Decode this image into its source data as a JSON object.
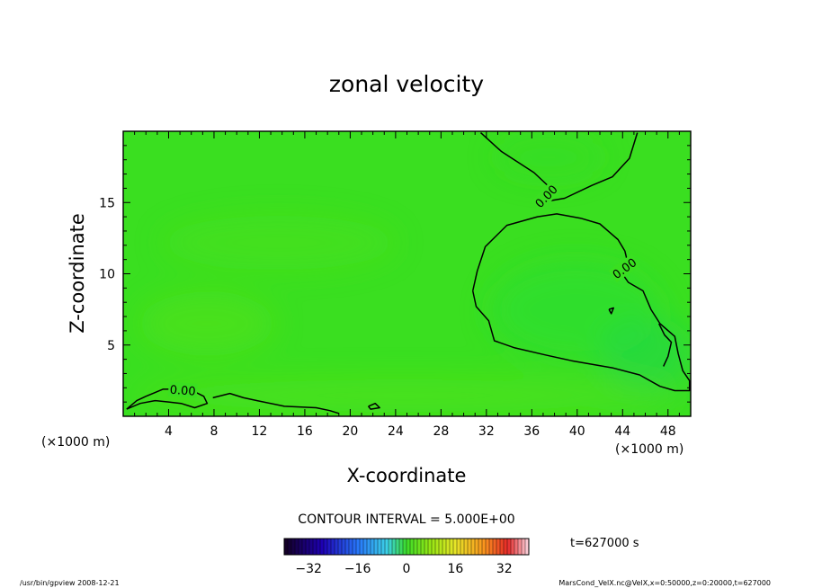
{
  "chart_data": {
    "type": "heatmap",
    "title": "zonal velocity",
    "xlabel": "X-coordinate",
    "ylabel": "Z-coordinate",
    "x_unit": "(×1000 m)",
    "y_unit": "(×1000 m)",
    "xlim": [
      0,
      50
    ],
    "ylim": [
      0,
      20
    ],
    "x_ticks": [
      4,
      8,
      12,
      16,
      20,
      24,
      28,
      32,
      36,
      40,
      44,
      48
    ],
    "y_ticks": [
      5,
      10,
      15
    ],
    "field_color": "#3adf20",
    "contours": [
      {
        "label": "0.00",
        "points": [
          [
            0.3,
            0.5
          ],
          [
            1.2,
            1.1
          ],
          [
            2.0,
            1.4
          ],
          [
            3.5,
            1.9
          ],
          [
            4.4,
            1.9
          ],
          [
            6.1,
            1.8
          ],
          [
            7.1,
            1.4
          ],
          [
            7.4,
            0.9
          ],
          [
            6.3,
            0.6
          ],
          [
            5.1,
            0.9
          ],
          [
            4.0,
            1.0
          ],
          [
            2.8,
            1.1
          ],
          [
            1.5,
            0.9
          ],
          [
            0.3,
            0.5
          ]
        ]
      },
      {
        "label": "",
        "points": [
          [
            7.9,
            1.3
          ],
          [
            9.4,
            1.6
          ],
          [
            10.6,
            1.3
          ],
          [
            11.8,
            1.1
          ],
          [
            14.2,
            0.7
          ],
          [
            17.0,
            0.6
          ],
          [
            18.2,
            0.4
          ],
          [
            19.0,
            0.2
          ]
        ]
      },
      {
        "label": "",
        "points": [
          [
            21.6,
            0.7
          ],
          [
            22.2,
            0.9
          ],
          [
            22.6,
            0.6
          ],
          [
            21.8,
            0.5
          ],
          [
            21.6,
            0.7
          ]
        ]
      },
      {
        "label": "0.00",
        "points": [
          [
            31.5,
            19.9
          ],
          [
            33.3,
            18.6
          ],
          [
            36.2,
            17.1
          ],
          [
            37.8,
            15.9
          ],
          [
            36.7,
            15.0
          ],
          [
            38.9,
            15.3
          ],
          [
            41.3,
            16.2
          ],
          [
            43.1,
            16.8
          ],
          [
            44.6,
            18.1
          ],
          [
            45.3,
            19.9
          ]
        ]
      },
      {
        "label": "0.00",
        "points": [
          [
            30.8,
            8.8
          ],
          [
            31.2,
            10.2
          ],
          [
            31.9,
            11.9
          ],
          [
            33.8,
            13.4
          ],
          [
            36.5,
            14.0
          ],
          [
            38.2,
            14.2
          ],
          [
            40.3,
            13.9
          ],
          [
            42.0,
            13.5
          ],
          [
            43.6,
            12.4
          ],
          [
            44.2,
            11.6
          ],
          [
            44.5,
            10.6
          ],
          [
            43.8,
            10.2
          ],
          [
            44.5,
            9.4
          ],
          [
            45.8,
            8.8
          ],
          [
            46.5,
            7.5
          ],
          [
            47.3,
            6.5
          ],
          [
            48.6,
            5.6
          ],
          [
            48.9,
            4.4
          ],
          [
            49.3,
            3.2
          ],
          [
            49.9,
            2.5
          ],
          [
            49.9,
            1.8
          ],
          [
            48.6,
            1.8
          ],
          [
            47.3,
            2.1
          ],
          [
            45.5,
            2.9
          ],
          [
            43.1,
            3.4
          ],
          [
            39.5,
            3.9
          ],
          [
            37.2,
            4.3
          ],
          [
            34.5,
            4.8
          ],
          [
            32.7,
            5.3
          ],
          [
            32.2,
            6.7
          ],
          [
            31.1,
            7.7
          ],
          [
            30.8,
            8.8
          ]
        ]
      },
      {
        "label": "",
        "points": [
          [
            42.8,
            7.5
          ],
          [
            43.2,
            7.6
          ],
          [
            43.0,
            7.2
          ],
          [
            42.8,
            7.5
          ]
        ]
      },
      {
        "label": "",
        "points": [
          [
            47.2,
            6.5
          ],
          [
            47.7,
            5.7
          ],
          [
            48.3,
            5.2
          ],
          [
            48.0,
            4.2
          ],
          [
            47.6,
            3.5
          ]
        ]
      }
    ],
    "colorbar": {
      "ticks": [
        -32,
        -16,
        0,
        16,
        32
      ],
      "range": [
        -40,
        40
      ],
      "contour_interval_text": "CONTOUR INTERVAL = 5.000E+00",
      "time_text": "t=627000 s"
    }
  },
  "footer": {
    "left": "/usr/bin/gpview   2008-12-21",
    "right": "MarsCond_VelX.nc@VelX,x=0:50000,z=0:20000,t=627000"
  }
}
